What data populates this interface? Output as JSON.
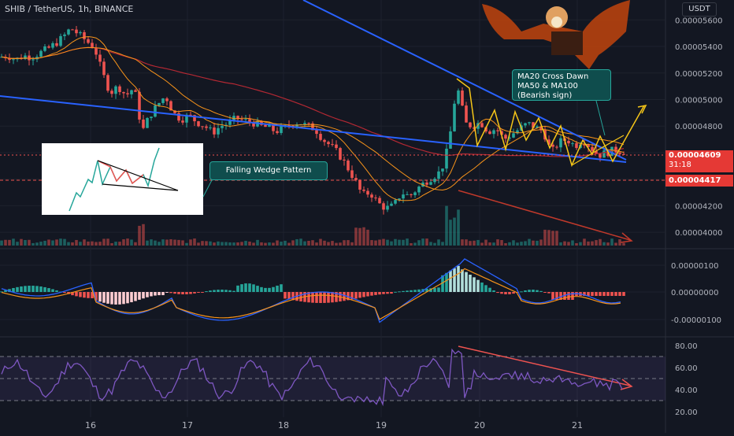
{
  "title": "SHIB / TetherUS, 1h, BINANCE",
  "currency": "USDT",
  "colors": {
    "bg": "#131722",
    "grid": "#1e222d",
    "axis_text": "#b2b5be",
    "up": "#26a69a",
    "down": "#ef5350",
    "ma_red": "#b22833",
    "ma_orange": "#f7931a",
    "trend_blue": "#2962ff",
    "yellow": "#f5c518",
    "annotation_bg": "#0f4d4d",
    "annotation_border": "#26a69a"
  },
  "price_axis": [
    "0.00005600",
    "0.00005400",
    "0.00005200",
    "0.00005000",
    "0.00004800",
    "0.00004600",
    "0.00004400",
    "0.00004200",
    "0.00004000"
  ],
  "macd_axis": [
    "0.00000100",
    "0.00000000",
    "-0.00000100"
  ],
  "rsi_axis": [
    "80.00",
    "60.00",
    "40.00",
    "20.00"
  ],
  "time_axis": [
    "16",
    "17",
    "18",
    "19",
    "20",
    "21"
  ],
  "current_price": {
    "label": "0.00004609",
    "countdown": "31:18"
  },
  "level_price": {
    "label": "0.00004417"
  },
  "annotations": {
    "falling_wedge": "Falling Wedge Pattern",
    "ma_cross": [
      "MA20 Cross Dawn",
      "MA50 & MA100",
      "(Bearish sign)"
    ]
  },
  "chart_data": {
    "type": "candlestick",
    "title": "SHIB / TetherUS, 1h, BINANCE",
    "x_ticks": [
      "16",
      "17",
      "18",
      "19",
      "20",
      "21"
    ],
    "price_ylim": [
      3.9e-05,
      5.75e-05
    ],
    "price_close_path": [
      [
        0,
        5.32e-05
      ],
      [
        10,
        5.33e-05
      ],
      [
        20,
        5.3e-05
      ],
      [
        30,
        5.33e-05
      ],
      [
        40,
        5.32e-05
      ],
      [
        50,
        5.35e-05
      ],
      [
        60,
        5.38e-05
      ],
      [
        70,
        5.42e-05
      ],
      [
        80,
        5.47e-05
      ],
      [
        90,
        5.54e-05
      ],
      [
        100,
        5.49e-05
      ],
      [
        110,
        5.44e-05
      ],
      [
        120,
        5.39e-05
      ],
      [
        130,
        5.2e-05
      ],
      [
        140,
        5.05e-05
      ],
      [
        150,
        5.1e-05
      ],
      [
        160,
        5.03e-05
      ],
      [
        170,
        5.09e-05
      ],
      [
        175,
        4.95e-05
      ],
      [
        180,
        4.75e-05
      ],
      [
        190,
        4.88e-05
      ],
      [
        200,
        4.96e-05
      ],
      [
        210,
        5.03e-05
      ],
      [
        220,
        4.9e-05
      ],
      [
        230,
        4.85e-05
      ],
      [
        240,
        4.88e-05
      ],
      [
        250,
        4.83e-05
      ],
      [
        260,
        4.8e-05
      ],
      [
        270,
        4.75e-05
      ],
      [
        280,
        4.8e-05
      ],
      [
        290,
        4.82e-05
      ],
      [
        300,
        4.86e-05
      ],
      [
        310,
        4.84e-05
      ],
      [
        320,
        4.83e-05
      ],
      [
        330,
        4.8e-05
      ],
      [
        340,
        4.79e-05
      ],
      [
        350,
        4.76e-05
      ],
      [
        360,
        4.78e-05
      ],
      [
        370,
        4.82e-05
      ],
      [
        380,
        4.83e-05
      ],
      [
        390,
        4.8e-05
      ],
      [
        400,
        4.78e-05
      ],
      [
        410,
        4.7e-05
      ],
      [
        420,
        4.65e-05
      ],
      [
        430,
        4.59e-05
      ],
      [
        440,
        4.5e-05
      ],
      [
        450,
        4.4e-05
      ],
      [
        460,
        4.28e-05
      ],
      [
        470,
        4.3e-05
      ],
      [
        480,
        4.22e-05
      ],
      [
        490,
        4.18e-05
      ],
      [
        500,
        4.2e-05
      ],
      [
        510,
        4.3e-05
      ],
      [
        520,
        4.27e-05
      ],
      [
        530,
        4.33e-05
      ],
      [
        540,
        4.38e-05
      ],
      [
        550,
        4.42e-05
      ],
      [
        560,
        4.46e-05
      ],
      [
        570,
        4.66e-05
      ],
      [
        575,
        4.9e-05
      ],
      [
        580,
        5.1e-05
      ],
      [
        585,
        5e-05
      ],
      [
        590,
        4.82e-05
      ],
      [
        600,
        4.8e-05
      ],
      [
        610,
        4.83e-05
      ],
      [
        620,
        4.76e-05
      ],
      [
        630,
        4.78e-05
      ],
      [
        640,
        4.7e-05
      ],
      [
        650,
        4.74e-05
      ],
      [
        660,
        4.78e-05
      ],
      [
        670,
        4.82e-05
      ],
      [
        680,
        4.79e-05
      ],
      [
        690,
        4.76e-05
      ],
      [
        700,
        4.6e-05
      ],
      [
        710,
        4.68e-05
      ],
      [
        720,
        4.7e-05
      ],
      [
        730,
        4.65e-05
      ],
      [
        740,
        4.7e-05
      ],
      [
        750,
        4.64e-05
      ],
      [
        760,
        4.58e-05
      ],
      [
        770,
        4.6e-05
      ],
      [
        780,
        4.62e-05
      ],
      [
        790,
        4.609e-05
      ]
    ],
    "rsi_ylim": [
      15,
      85
    ],
    "rsi_levels": [
      70,
      50,
      30
    ]
  }
}
